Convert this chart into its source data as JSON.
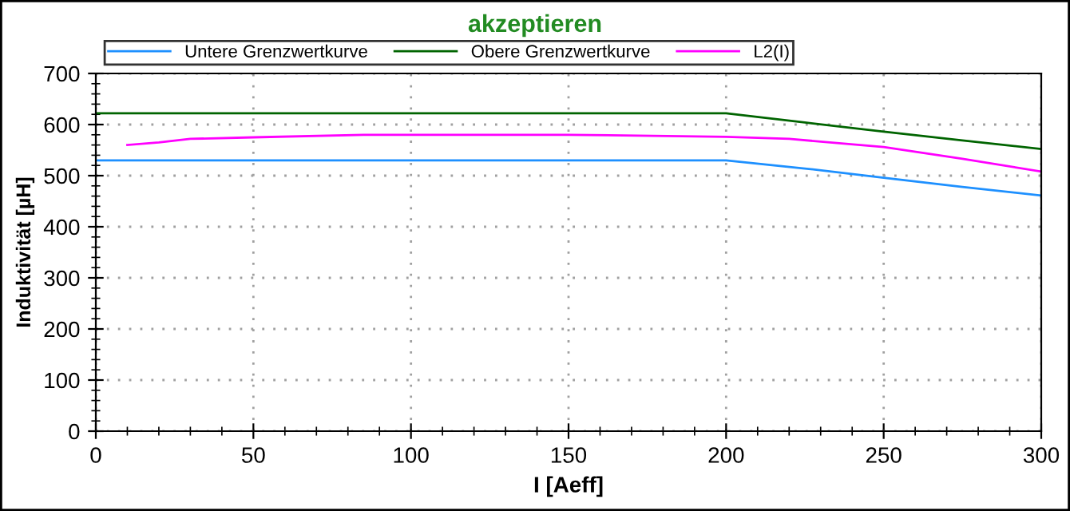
{
  "chart_data": {
    "type": "line",
    "title": "akzeptieren",
    "xlabel": "I [Aeff]",
    "ylabel": "Induktivität [µH]",
    "series": [
      {
        "name": "Untere Grenzwertkurve",
        "color": "#1e90ff",
        "x": [
          0,
          200,
          225,
          250,
          275,
          300
        ],
        "values": [
          530,
          530,
          514,
          496,
          478,
          461
        ]
      },
      {
        "name": "Obere Grenzwertkurve",
        "color": "#006400",
        "x": [
          0,
          200,
          225,
          250,
          275,
          300
        ],
        "values": [
          622,
          622,
          604,
          586,
          569,
          552
        ]
      },
      {
        "name": "L2(I)",
        "color": "#ff00ff",
        "x": [
          10,
          20,
          30,
          50,
          85,
          150,
          200,
          220,
          250,
          275,
          300
        ],
        "values": [
          560,
          565,
          572,
          575,
          580,
          580,
          576,
          572,
          556,
          533,
          508
        ]
      }
    ],
    "xlim": [
      0,
      300
    ],
    "xticks": [
      0,
      50,
      100,
      150,
      200,
      250,
      300
    ],
    "ylim": [
      0,
      700
    ],
    "yticks": [
      0,
      100,
      200,
      300,
      400,
      500,
      600,
      700
    ],
    "grid": true,
    "legend": "top left",
    "marker": "none",
    "line_style": "solid"
  }
}
